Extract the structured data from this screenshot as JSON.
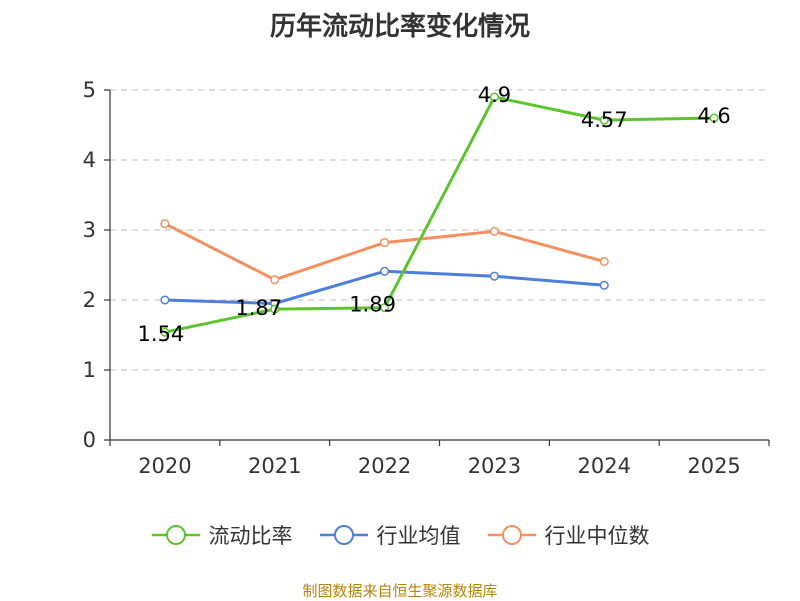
{
  "chart_data": {
    "type": "line",
    "title": "历年流动比率变化情况",
    "categories": [
      "2020",
      "2021",
      "2022",
      "2023",
      "2024",
      "2025"
    ],
    "ylim": [
      0,
      5
    ],
    "yticks": [
      0,
      1,
      2,
      3,
      4,
      5
    ],
    "grid": true,
    "legend_position": "bottom",
    "series": [
      {
        "name": "流动比率",
        "color": "#5ec42e",
        "values": [
          1.54,
          1.87,
          1.89,
          4.9,
          4.57,
          4.6
        ],
        "labels": [
          "1.54",
          "1.87",
          "1.89",
          "4.9",
          "4.57",
          "4.6"
        ],
        "show_markers": [
          true,
          true,
          true,
          true,
          true,
          true
        ]
      },
      {
        "name": "行业均值",
        "color": "#4f7fdc",
        "values": [
          2.0,
          1.95,
          2.41,
          2.34,
          2.21,
          null
        ]
      },
      {
        "name": "行业中位数",
        "color": "#f49060",
        "values": [
          3.09,
          2.29,
          2.82,
          2.98,
          2.55,
          null
        ]
      }
    ]
  },
  "source_note": "制图数据来自恒生聚源数据库"
}
